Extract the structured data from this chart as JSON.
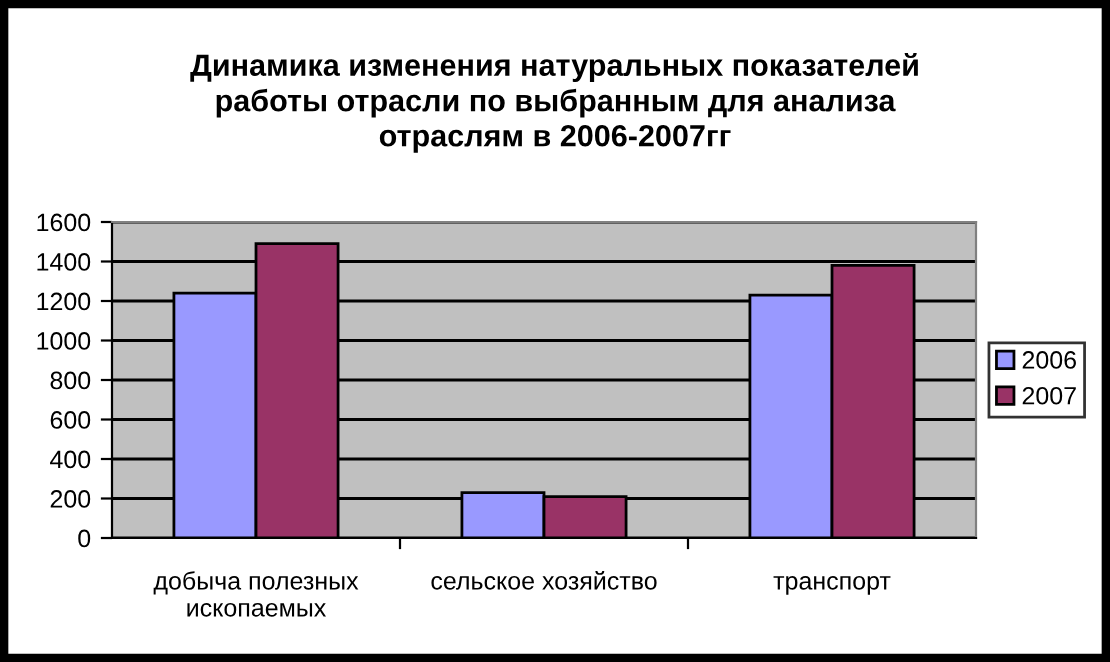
{
  "chart_data": {
    "type": "bar",
    "title": "Динамика изменения натуральных показателей\nработы отрасли по выбранным для анализа\nотраслям в 2006-2007гг",
    "categories": [
      "добыча полезных\nископаемых",
      "сельское хозяйство",
      "транспорт"
    ],
    "series": [
      {
        "name": "2006",
        "color": "#9999ff",
        "values": [
          1240,
          230,
          1230
        ]
      },
      {
        "name": "2007",
        "color": "#993366",
        "values": [
          1490,
          210,
          1380
        ]
      }
    ],
    "ylim": [
      0,
      1600
    ],
    "yticks": [
      0,
      200,
      400,
      600,
      800,
      1000,
      1200,
      1400,
      1600
    ],
    "grid": "y",
    "legend": "right"
  }
}
